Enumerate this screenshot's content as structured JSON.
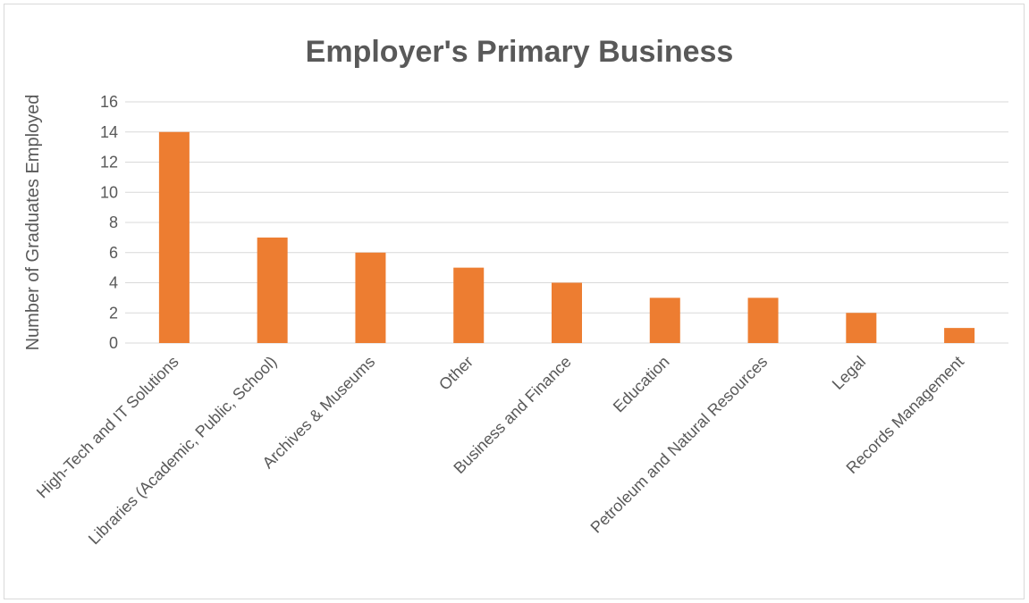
{
  "chart_data": {
    "type": "bar",
    "title": "Employer's Primary Business",
    "xlabel": "",
    "ylabel": "Number of Graduates Employed",
    "categories": [
      "High-Tech and IT Solutions",
      "Libraries (Academic, Public, School)",
      "Archives & Museums",
      "Other",
      "Business and Finance",
      "Education",
      "Petroleum and Natural Resources",
      "Legal",
      "Records Management"
    ],
    "values": [
      14,
      7,
      6,
      5,
      4,
      3,
      3,
      2,
      1
    ],
    "ylim": [
      0,
      16
    ],
    "yticks": [
      "0",
      "2",
      "4",
      "6",
      "8",
      "10",
      "12",
      "14",
      "16"
    ],
    "grid": true,
    "legend": "none",
    "colors": {
      "bar": "#ED7D31",
      "grid": "#d9d9d9",
      "text": "#595959",
      "title": "#595959"
    }
  }
}
